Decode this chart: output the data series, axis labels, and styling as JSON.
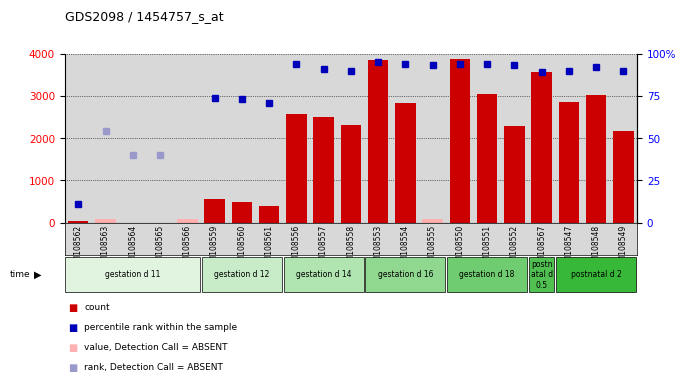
{
  "title": "GDS2098 / 1454757_s_at",
  "samples": [
    "GSM108562",
    "GSM108563",
    "GSM108564",
    "GSM108565",
    "GSM108566",
    "GSM108559",
    "GSM108560",
    "GSM108561",
    "GSM108556",
    "GSM108557",
    "GSM108558",
    "GSM108553",
    "GSM108554",
    "GSM108555",
    "GSM108550",
    "GSM108551",
    "GSM108552",
    "GSM108567",
    "GSM108547",
    "GSM108548",
    "GSM108549"
  ],
  "count_values": [
    30,
    0,
    0,
    0,
    80,
    560,
    480,
    400,
    2560,
    2510,
    2310,
    3850,
    2840,
    0,
    3870,
    3050,
    2280,
    3570,
    2850,
    3020,
    2160
  ],
  "count_absent": [
    false,
    true,
    false,
    false,
    true,
    false,
    false,
    false,
    false,
    false,
    false,
    false,
    false,
    true,
    false,
    false,
    false,
    false,
    false,
    false,
    false
  ],
  "absent_count_values": [
    0,
    80,
    0,
    0,
    80,
    0,
    0,
    0,
    0,
    0,
    0,
    0,
    0,
    80,
    0,
    0,
    0,
    0,
    0,
    0,
    0
  ],
  "rank_values": [
    11,
    0,
    0,
    0,
    0,
    74,
    73,
    71,
    94,
    91,
    90,
    95,
    94,
    93,
    94,
    94,
    93,
    89,
    90,
    92,
    90
  ],
  "rank_absent": [
    false,
    true,
    true,
    true,
    false,
    false,
    false,
    false,
    false,
    false,
    false,
    false,
    false,
    false,
    false,
    false,
    false,
    false,
    false,
    false,
    false
  ],
  "absent_rank_values": [
    0,
    54,
    40,
    40,
    0,
    0,
    0,
    0,
    0,
    0,
    0,
    0,
    0,
    0,
    0,
    0,
    0,
    0,
    0,
    0,
    0
  ],
  "groups": [
    {
      "label": "gestation d 11",
      "start": 0,
      "end": 5,
      "color": "#e0f4e0"
    },
    {
      "label": "gestation d 12",
      "start": 5,
      "end": 8,
      "color": "#c8ecc8"
    },
    {
      "label": "gestation d 14",
      "start": 8,
      "end": 11,
      "color": "#b0e4b0"
    },
    {
      "label": "gestation d 16",
      "start": 11,
      "end": 14,
      "color": "#90d890"
    },
    {
      "label": "gestation d 18",
      "start": 14,
      "end": 17,
      "color": "#70cc70"
    },
    {
      "label": "postn\natal d\n0.5",
      "start": 17,
      "end": 18,
      "color": "#50c050"
    },
    {
      "label": "postnatal d 2",
      "start": 18,
      "end": 21,
      "color": "#38b838"
    }
  ],
  "ylim_left": [
    0,
    4000
  ],
  "ylim_right": [
    0,
    100
  ],
  "yticks_left": [
    0,
    1000,
    2000,
    3000,
    4000
  ],
  "yticks_right": [
    0,
    25,
    50,
    75,
    100
  ],
  "bar_color": "#cc0000",
  "absent_bar_color": "#ffb0b0",
  "rank_color": "#0000bb",
  "absent_rank_color": "#9999cc",
  "bg_color": "#d8d8d8",
  "grid_color": "#000000"
}
